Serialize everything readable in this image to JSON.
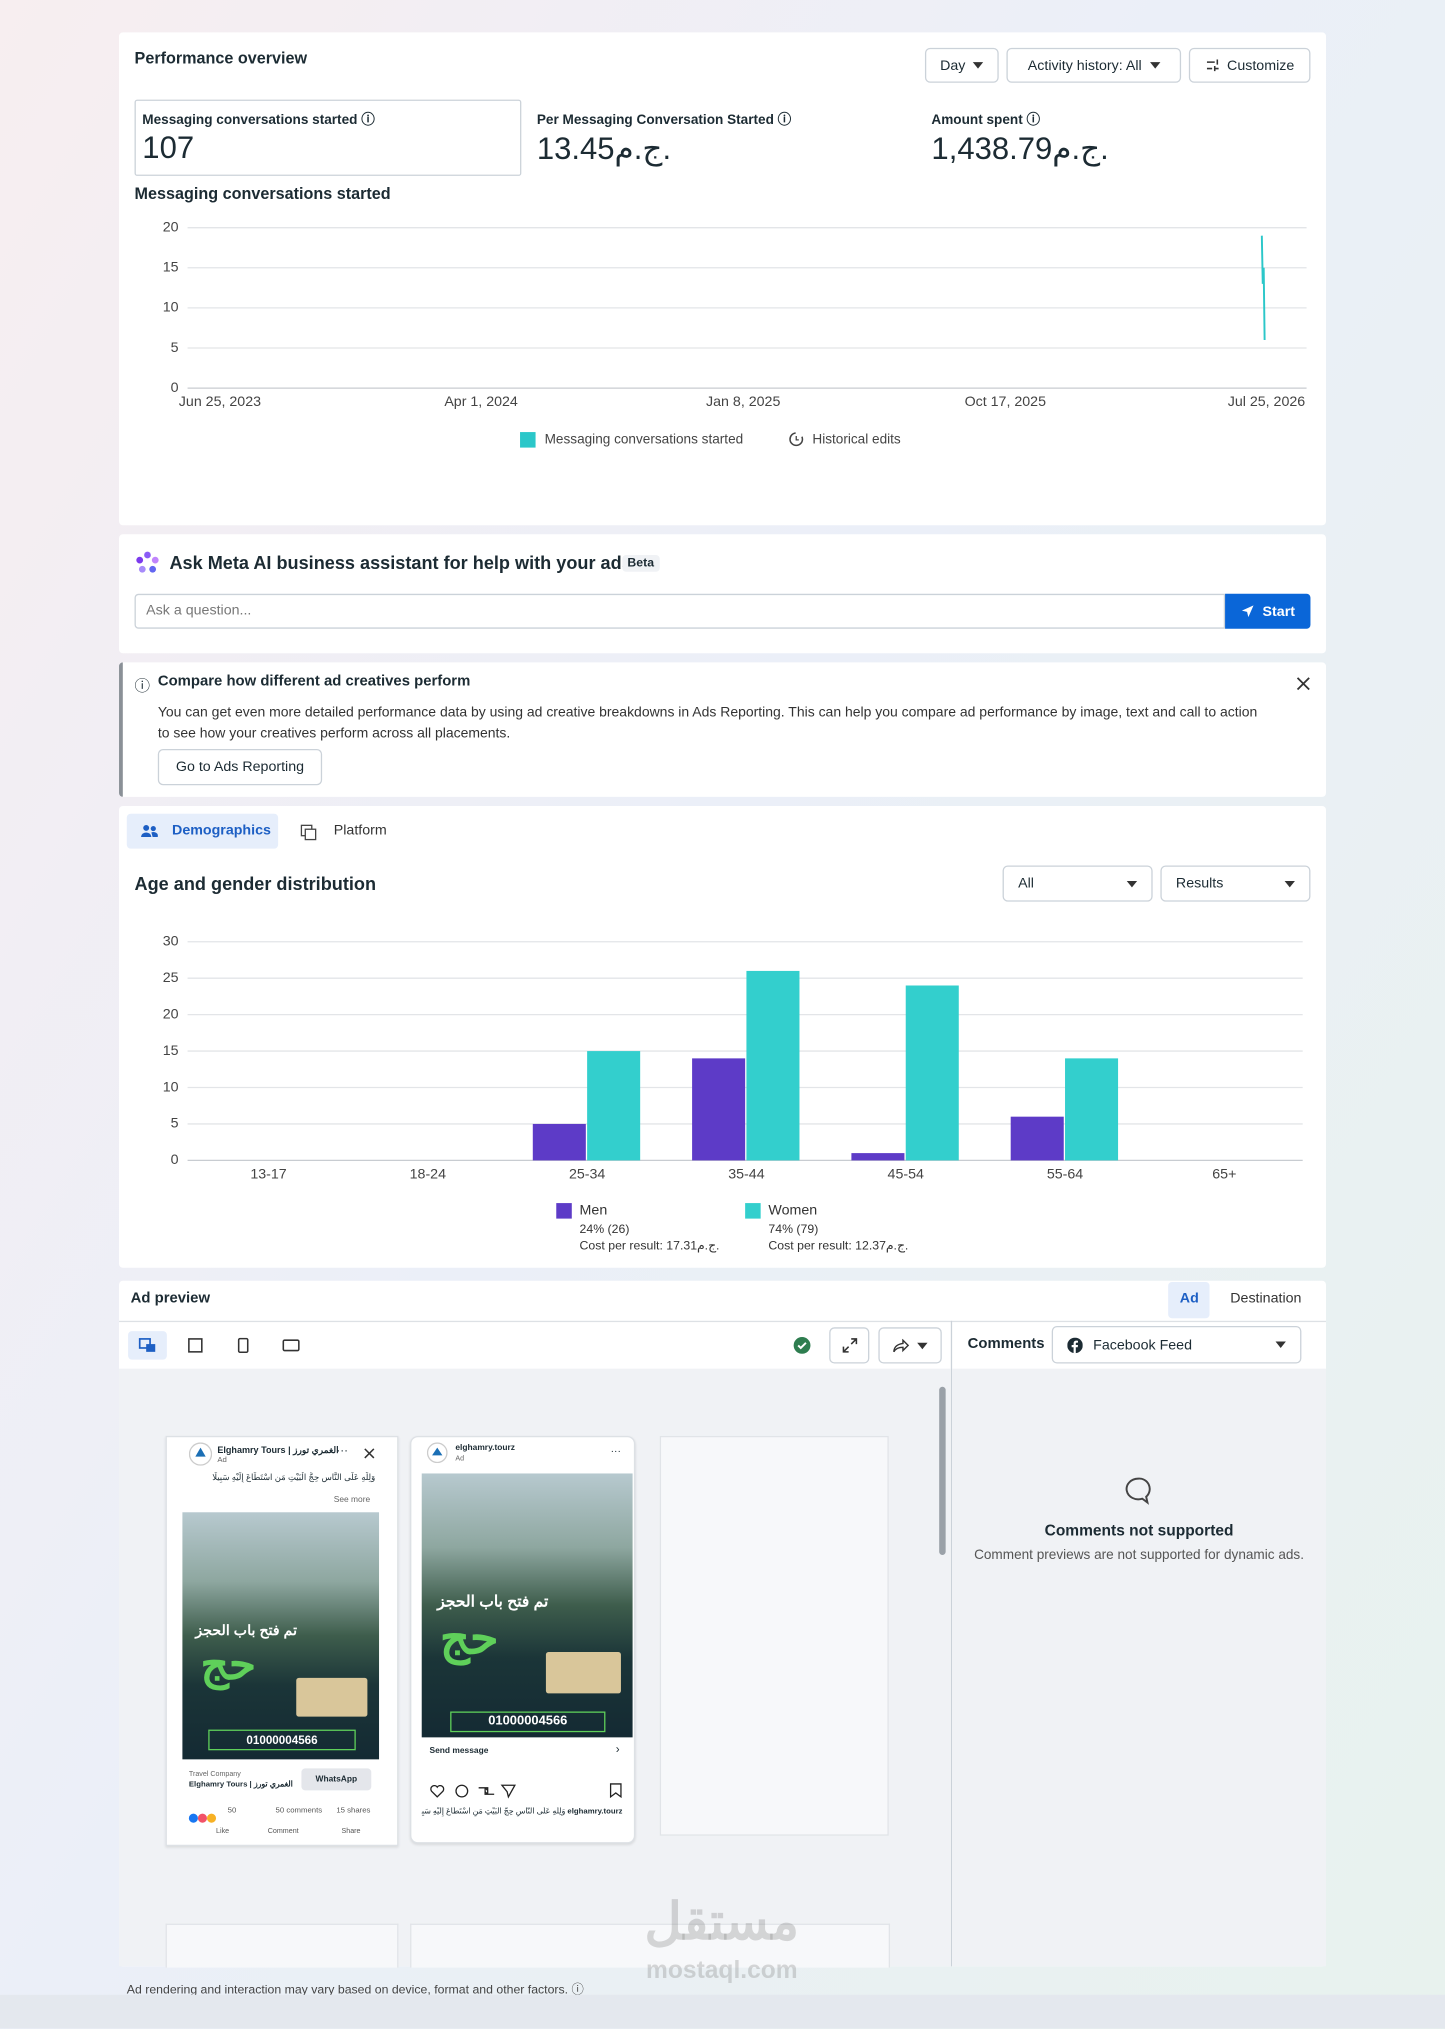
{
  "performance": {
    "title": "Performance overview",
    "controls": [
      "Day",
      "Activity history: All",
      "Customize"
    ],
    "metrics": [
      {
        "label": "Messaging conversations started",
        "value": "107"
      },
      {
        "label": "Per Messaging Conversation Started",
        "value": "13.45ج.م."
      },
      {
        "label": "Amount spent",
        "value": "1,438.79ج.م."
      }
    ]
  },
  "chart_data": [
    {
      "type": "line",
      "title": "Messaging conversations started",
      "x": [
        "2026-07-20",
        "2026-07-21",
        "2026-07-22",
        "2026-07-23"
      ],
      "series": [
        {
          "name": "Messaging conversations started",
          "color": "#2bc7c9",
          "values": [
            19,
            13,
            15,
            6
          ]
        }
      ],
      "xlim": [
        "2023-06-25",
        "2026-07-25"
      ],
      "xticks": [
        {
          "value": "2023-06-25",
          "label": "Jun 25, 2023"
        },
        {
          "value": "2024-04-01",
          "label": "Apr 1, 2024"
        },
        {
          "value": "2025-01-08",
          "label": "Jan 8, 2025"
        },
        {
          "value": "2025-10-17",
          "label": "Oct 17, 2025"
        },
        {
          "value": "2026-07-25",
          "label": "Jul 25, 2026"
        }
      ],
      "ylim": [
        0,
        20
      ],
      "yticks": [
        0,
        5,
        10,
        15,
        20
      ],
      "grid": true,
      "legend_extra": "Historical edits"
    },
    {
      "type": "bar",
      "title": "Age and gender distribution",
      "categories": [
        "13-17",
        "18-24",
        "25-34",
        "35-44",
        "45-54",
        "55-64",
        "65+"
      ],
      "series": [
        {
          "name": "Men",
          "color": "#5d3bc7",
          "values": [
            0,
            0,
            5,
            14,
            1,
            6,
            0
          ],
          "summary": "24% (26)",
          "cost": "Cost per result: 17.31ج.م."
        },
        {
          "name": "Women",
          "color": "#33cfcd",
          "values": [
            0,
            0,
            15,
            26,
            24,
            14,
            0
          ],
          "summary": "74% (79)",
          "cost": "Cost per result: 12.37ج.م."
        }
      ],
      "ylim": [
        0,
        30
      ],
      "yticks": [
        0,
        5,
        10,
        15,
        20,
        25,
        30
      ],
      "grid": true
    }
  ],
  "meta_ai": {
    "title": "Ask Meta AI business assistant for help with your ads",
    "badge": "Beta",
    "placeholder": "Ask a question...",
    "button": "Start"
  },
  "notice": {
    "title": "Compare how different ad creatives perform",
    "body": "You can get even more detailed performance data by using ad creative breakdowns in Ads Reporting. This can help you compare ad performance by image, text and call to action to see how your creatives perform across all placements.",
    "button": "Go to Ads Reporting"
  },
  "breakdown": {
    "tabs": [
      "Demographics",
      "Platform"
    ],
    "filters": [
      "All",
      "Results"
    ]
  },
  "ad_preview": {
    "title": "Ad preview",
    "tabs": [
      "Ad",
      "Destination"
    ],
    "comments_label": "Comments",
    "placement": "Facebook Feed",
    "comments_title": "Comments not supported",
    "comments_body": "Comment previews are not supported for dynamic ads.",
    "footnote": "Ad rendering and interaction may vary based on device, format and other factors."
  },
  "creatives": {
    "fb_page": "Elghamry Tours | الغمري تورز",
    "fb_sponsored": "Ad",
    "fb_caption": "وَلِلَّهِ عَلَى النَّاسِ حِجُّ الْبَيْتِ مَنِ اسْتَطَاعَ إِلَيْهِ سَبِيلًا",
    "fb_see_more": "See more",
    "headline": "تم فتح باب الحجز",
    "big_word": "حج",
    "phone": "01000004566",
    "fb_category": "Travel Company",
    "fb_cta": "WhatsApp",
    "fb_reactions": "50",
    "fb_comments": "50 comments",
    "fb_shares": "15 shares",
    "fb_actions": [
      "Like",
      "Comment",
      "Share"
    ],
    "ig_handle": "elghamry.tourz",
    "ig_sponsored": "Ad",
    "ig_cta": "Send message"
  },
  "watermark": {
    "arabic": "مستقل",
    "latin": "mostaql.com"
  }
}
